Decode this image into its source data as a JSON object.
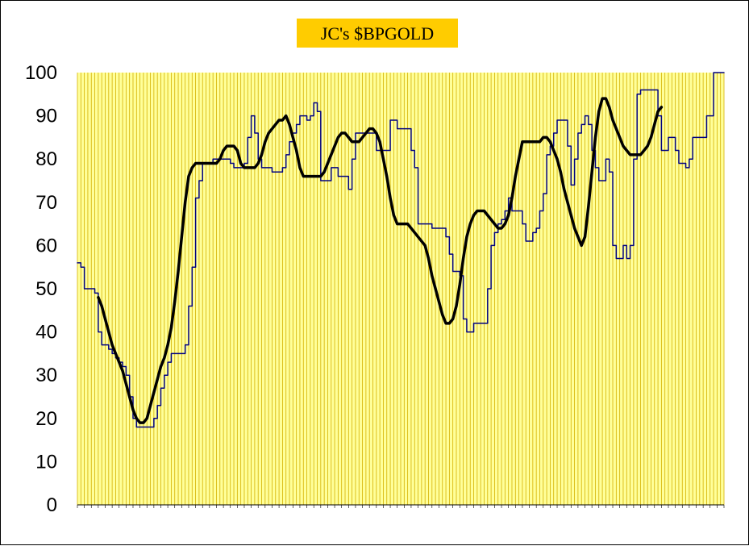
{
  "chart_data": {
    "type": "line",
    "title": "JC's $BPGOLD",
    "xlabel": "",
    "ylabel": "",
    "ylim": [
      0,
      100
    ],
    "yticks": [
      0,
      10,
      20,
      30,
      40,
      50,
      60,
      70,
      80,
      90,
      100
    ],
    "x_tick_labels_note": "illegible date labels",
    "grid": "vertical-lines",
    "colors": {
      "plot_background": "#ffff99",
      "gridline": "#d4b000",
      "title_box": "#ffcc00",
      "raw_series": "#000080",
      "smoothed_series": "#000000"
    },
    "series": [
      {
        "name": "",
        "color": "#000080",
        "values": [
          56,
          55,
          50,
          50,
          50,
          49,
          40,
          37,
          37,
          36,
          35,
          34,
          33,
          32,
          30,
          25,
          20,
          18,
          18,
          18,
          18,
          18,
          20,
          23,
          27,
          30,
          33,
          35,
          35,
          35,
          35,
          37,
          46,
          55,
          71,
          75,
          79,
          79,
          79,
          80,
          80,
          80,
          80,
          80,
          79,
          78,
          78,
          78,
          79,
          85,
          90,
          86,
          80,
          78,
          78,
          78,
          77,
          77,
          77,
          78,
          81,
          84,
          86,
          88,
          90,
          90,
          89,
          90,
          93,
          91,
          75,
          75,
          75,
          78,
          78,
          76,
          76,
          76,
          73,
          80,
          86,
          86,
          86,
          86,
          86,
          86,
          82,
          82,
          82,
          82,
          89,
          89,
          87,
          87,
          87,
          87,
          82,
          78,
          65,
          65,
          65,
          65,
          64,
          64,
          64,
          64,
          62,
          58,
          54,
          54,
          53,
          43,
          40,
          40,
          42,
          42,
          42,
          42,
          50,
          60,
          63,
          65,
          66,
          68,
          71,
          68,
          68,
          68,
          65,
          61,
          61,
          63,
          64,
          68,
          72,
          81,
          83,
          86,
          89,
          89,
          89,
          83,
          74,
          80,
          86,
          88,
          90,
          88,
          82,
          78,
          75,
          75,
          80,
          77,
          60,
          57,
          57,
          60,
          57,
          60,
          80,
          95,
          96,
          96,
          96,
          96,
          96,
          90,
          82,
          82,
          85,
          85,
          82,
          79,
          79,
          78,
          80,
          85,
          85,
          85,
          85,
          90,
          90,
          100,
          100,
          100,
          100
        ]
      },
      {
        "name": "",
        "color": "#000000",
        "start_index": 6,
        "values": [
          48,
          46,
          43,
          40,
          37,
          35,
          33,
          31,
          28,
          25,
          22,
          20,
          19,
          19,
          20,
          23,
          26,
          29,
          32,
          34,
          37,
          41,
          47,
          54,
          62,
          70,
          76,
          78,
          79,
          79,
          79,
          79,
          79,
          79,
          79,
          80,
          82,
          83,
          83,
          83,
          82,
          79,
          78,
          78,
          78,
          78,
          79,
          81,
          84,
          86,
          87,
          88,
          89,
          89,
          90,
          88,
          85,
          82,
          78,
          76,
          76,
          76,
          76,
          76,
          76,
          77,
          79,
          81,
          83,
          85,
          86,
          86,
          85,
          84,
          84,
          84,
          85,
          86,
          87,
          87,
          86,
          84,
          80,
          76,
          71,
          67,
          65,
          65,
          65,
          65,
          64,
          63,
          62,
          61,
          60,
          57,
          53,
          50,
          47,
          44,
          42,
          42,
          43,
          46,
          51,
          57,
          62,
          65,
          67,
          68,
          68,
          68,
          67,
          66,
          65,
          64,
          64,
          65,
          67,
          71,
          76,
          80,
          84,
          84,
          84,
          84,
          84,
          84,
          85,
          85,
          84,
          82,
          80,
          77,
          73,
          70,
          67,
          64,
          62,
          60,
          62,
          69,
          77,
          85,
          91,
          94,
          94,
          92,
          89,
          87,
          85,
          83,
          82,
          81,
          81,
          81,
          81,
          82,
          83,
          85,
          88,
          91,
          92
        ]
      }
    ]
  }
}
